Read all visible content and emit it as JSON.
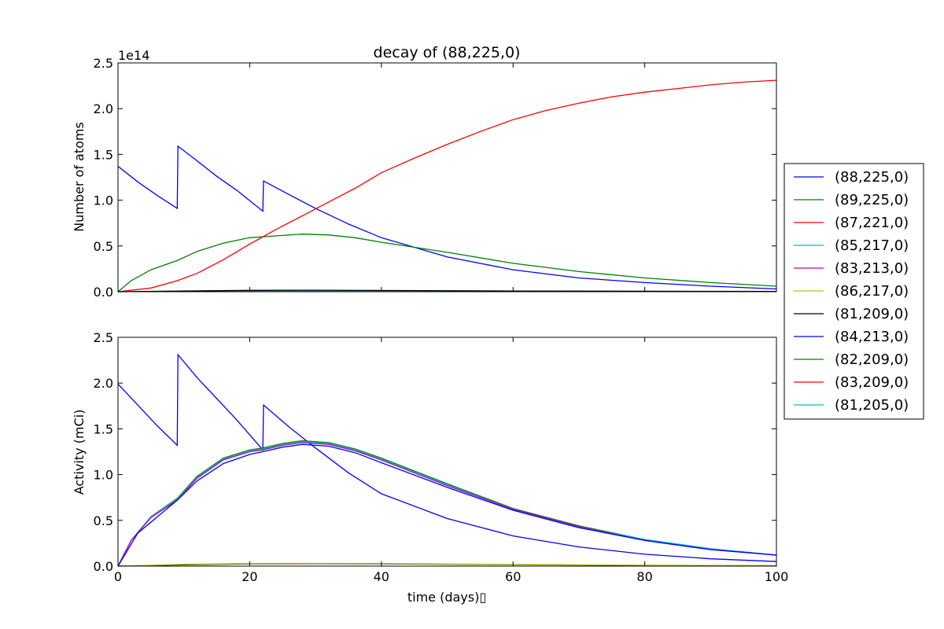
{
  "chart_data": {
    "type": "line",
    "title": "decay of (88,225,0)",
    "xlabel": "time (days)▯",
    "xlim": [
      0,
      100
    ],
    "xticks": [
      "0",
      "20",
      "40",
      "60",
      "80",
      "100"
    ],
    "legend": {
      "placement": "right-outside",
      "entries": [
        {
          "label": "(88,225,0)",
          "color": "#0000ff"
        },
        {
          "label": "(89,225,0)",
          "color": "#008000"
        },
        {
          "label": "(87,221,0)",
          "color": "#ff0000"
        },
        {
          "label": "(85,217,0)",
          "color": "#00bfbf"
        },
        {
          "label": "(83,213,0)",
          "color": "#bf00bf"
        },
        {
          "label": "(86,217,0)",
          "color": "#bfbf00"
        },
        {
          "label": "(81,209,0)",
          "color": "#000000"
        },
        {
          "label": "(84,213,0)",
          "color": "#0000ff"
        },
        {
          "label": "(82,209,0)",
          "color": "#008000"
        },
        {
          "label": "(83,209,0)",
          "color": "#ff0000"
        },
        {
          "label": "(81,205,0)",
          "color": "#00bfbf"
        }
      ]
    },
    "panels": [
      {
        "ylabel": "Number of atoms",
        "ylim": [
          0,
          2.5
        ],
        "yticks": [
          "0.0",
          "0.5",
          "1.0",
          "1.5",
          "2.0",
          "2.5"
        ],
        "offset_text": "1e14",
        "series": [
          {
            "color": "#0000ff",
            "points": [
              [
                0,
                1.37
              ],
              [
                3,
                1.2
              ],
              [
                6,
                1.05
              ],
              [
                9,
                0.91
              ],
              [
                9.1,
                1.59
              ],
              [
                12,
                1.43
              ],
              [
                15,
                1.26
              ],
              [
                18,
                1.11
              ],
              [
                22,
                0.88
              ],
              [
                22.1,
                1.21
              ],
              [
                26,
                1.06
              ],
              [
                30,
                0.91
              ],
              [
                35,
                0.74
              ],
              [
                40,
                0.59
              ],
              [
                50,
                0.38
              ],
              [
                60,
                0.24
              ],
              [
                70,
                0.15
              ],
              [
                80,
                0.1
              ],
              [
                90,
                0.06
              ],
              [
                100,
                0.03
              ]
            ]
          },
          {
            "color": "#008000",
            "points": [
              [
                0,
                0.0
              ],
              [
                2,
                0.12
              ],
              [
                5,
                0.24
              ],
              [
                9,
                0.34
              ],
              [
                12,
                0.44
              ],
              [
                16,
                0.53
              ],
              [
                20,
                0.59
              ],
              [
                24,
                0.61
              ],
              [
                28,
                0.63
              ],
              [
                32,
                0.62
              ],
              [
                36,
                0.59
              ],
              [
                40,
                0.54
              ],
              [
                50,
                0.43
              ],
              [
                60,
                0.31
              ],
              [
                70,
                0.22
              ],
              [
                80,
                0.15
              ],
              [
                90,
                0.1
              ],
              [
                100,
                0.06
              ]
            ]
          },
          {
            "color": "#ff0000",
            "points": [
              [
                0,
                0.0
              ],
              [
                5,
                0.04
              ],
              [
                9,
                0.12
              ],
              [
                12,
                0.2
              ],
              [
                16,
                0.35
              ],
              [
                20,
                0.52
              ],
              [
                24,
                0.68
              ],
              [
                28,
                0.83
              ],
              [
                32,
                0.98
              ],
              [
                36,
                1.13
              ],
              [
                40,
                1.3
              ],
              [
                45,
                1.46
              ],
              [
                50,
                1.61
              ],
              [
                55,
                1.75
              ],
              [
                60,
                1.88
              ],
              [
                65,
                1.98
              ],
              [
                70,
                2.06
              ],
              [
                75,
                2.13
              ],
              [
                80,
                2.18
              ],
              [
                85,
                2.22
              ],
              [
                90,
                2.26
              ],
              [
                95,
                2.29
              ],
              [
                100,
                2.31
              ]
            ]
          },
          {
            "color": "#00bfbf",
            "points": [
              [
                0,
                0.0
              ],
              [
                10,
                0.005
              ],
              [
                30,
                0.01
              ],
              [
                60,
                0.005
              ],
              [
                100,
                0.002
              ]
            ]
          },
          {
            "color": "#000000",
            "points": [
              [
                0,
                0.0
              ],
              [
                20,
                0.015
              ],
              [
                30,
                0.016
              ],
              [
                60,
                0.008
              ],
              [
                100,
                0.003
              ]
            ]
          }
        ]
      },
      {
        "ylabel": "Activity (mCi)",
        "ylim": [
          0,
          2.5
        ],
        "yticks": [
          "0.0",
          "0.5",
          "1.0",
          "1.5",
          "2.0",
          "2.5"
        ],
        "series": [
          {
            "color": "#0000ff",
            "points": [
              [
                0,
                1.99
              ],
              [
                3,
                1.76
              ],
              [
                6,
                1.53
              ],
              [
                9,
                1.32
              ],
              [
                9.1,
                2.31
              ],
              [
                12,
                2.06
              ],
              [
                15,
                1.83
              ],
              [
                18,
                1.6
              ],
              [
                22,
                1.27
              ],
              [
                22.1,
                1.76
              ],
              [
                26,
                1.52
              ],
              [
                30,
                1.29
              ],
              [
                35,
                1.02
              ],
              [
                40,
                0.79
              ],
              [
                50,
                0.52
              ],
              [
                60,
                0.33
              ],
              [
                70,
                0.21
              ],
              [
                80,
                0.13
              ],
              [
                90,
                0.08
              ],
              [
                100,
                0.05
              ]
            ]
          },
          {
            "color": "#008000",
            "points": [
              [
                0,
                0.0
              ],
              [
                2,
                0.28
              ],
              [
                5,
                0.54
              ],
              [
                9,
                0.74
              ],
              [
                12,
                0.98
              ],
              [
                16,
                1.18
              ],
              [
                20,
                1.27
              ],
              [
                22,
                1.29
              ],
              [
                25,
                1.34
              ],
              [
                28,
                1.37
              ],
              [
                32,
                1.35
              ],
              [
                36,
                1.28
              ],
              [
                40,
                1.18
              ],
              [
                50,
                0.9
              ],
              [
                60,
                0.63
              ],
              [
                70,
                0.44
              ],
              [
                80,
                0.29
              ],
              [
                90,
                0.19
              ],
              [
                100,
                0.12
              ]
            ]
          },
          {
            "color": "#00bfbf",
            "points": [
              [
                0,
                0.0
              ],
              [
                2,
                0.28
              ],
              [
                5,
                0.54
              ],
              [
                9,
                0.73
              ],
              [
                12,
                0.97
              ],
              [
                16,
                1.17
              ],
              [
                20,
                1.26
              ],
              [
                22,
                1.28
              ],
              [
                25,
                1.33
              ],
              [
                28,
                1.36
              ],
              [
                32,
                1.34
              ],
              [
                36,
                1.27
              ],
              [
                40,
                1.17
              ],
              [
                50,
                0.89
              ],
              [
                60,
                0.62
              ],
              [
                70,
                0.43
              ],
              [
                80,
                0.29
              ],
              [
                90,
                0.19
              ],
              [
                100,
                0.12
              ]
            ]
          },
          {
            "color": "#bf00bf",
            "points": [
              [
                0,
                0.0
              ],
              [
                2,
                0.28
              ],
              [
                5,
                0.53
              ],
              [
                9,
                0.72
              ],
              [
                12,
                0.96
              ],
              [
                16,
                1.16
              ],
              [
                20,
                1.25
              ],
              [
                22,
                1.27
              ],
              [
                25,
                1.32
              ],
              [
                28,
                1.35
              ],
              [
                32,
                1.33
              ],
              [
                36,
                1.26
              ],
              [
                40,
                1.16
              ],
              [
                50,
                0.88
              ],
              [
                60,
                0.62
              ],
              [
                70,
                0.43
              ],
              [
                80,
                0.28
              ],
              [
                90,
                0.18
              ],
              [
                100,
                0.12
              ]
            ]
          },
          {
            "color": "#000000",
            "points": [
              [
                0,
                0.0
              ],
              [
                10,
                0.015
              ],
              [
                20,
                0.025
              ],
              [
                30,
                0.027
              ],
              [
                40,
                0.025
              ],
              [
                60,
                0.016
              ],
              [
                80,
                0.008
              ],
              [
                100,
                0.004
              ]
            ]
          },
          {
            "color": "#bfbf00",
            "points": [
              [
                0,
                0.0
              ],
              [
                10,
                0.02
              ],
              [
                20,
                0.028
              ],
              [
                30,
                0.03
              ],
              [
                40,
                0.028
              ],
              [
                60,
                0.018
              ],
              [
                80,
                0.01
              ],
              [
                100,
                0.006
              ]
            ]
          },
          {
            "color": "#0000ff",
            "points": [
              [
                0,
                0.0
              ],
              [
                3,
                0.36
              ],
              [
                9,
                0.72
              ],
              [
                12,
                0.93
              ],
              [
                16,
                1.12
              ],
              [
                20,
                1.22
              ],
              [
                22,
                1.25
              ],
              [
                25,
                1.3
              ],
              [
                28,
                1.33
              ],
              [
                32,
                1.31
              ],
              [
                36,
                1.24
              ],
              [
                40,
                1.13
              ],
              [
                50,
                0.86
              ],
              [
                60,
                0.61
              ],
              [
                70,
                0.42
              ],
              [
                80,
                0.28
              ],
              [
                90,
                0.18
              ],
              [
                100,
                0.12
              ]
            ]
          }
        ]
      }
    ]
  }
}
